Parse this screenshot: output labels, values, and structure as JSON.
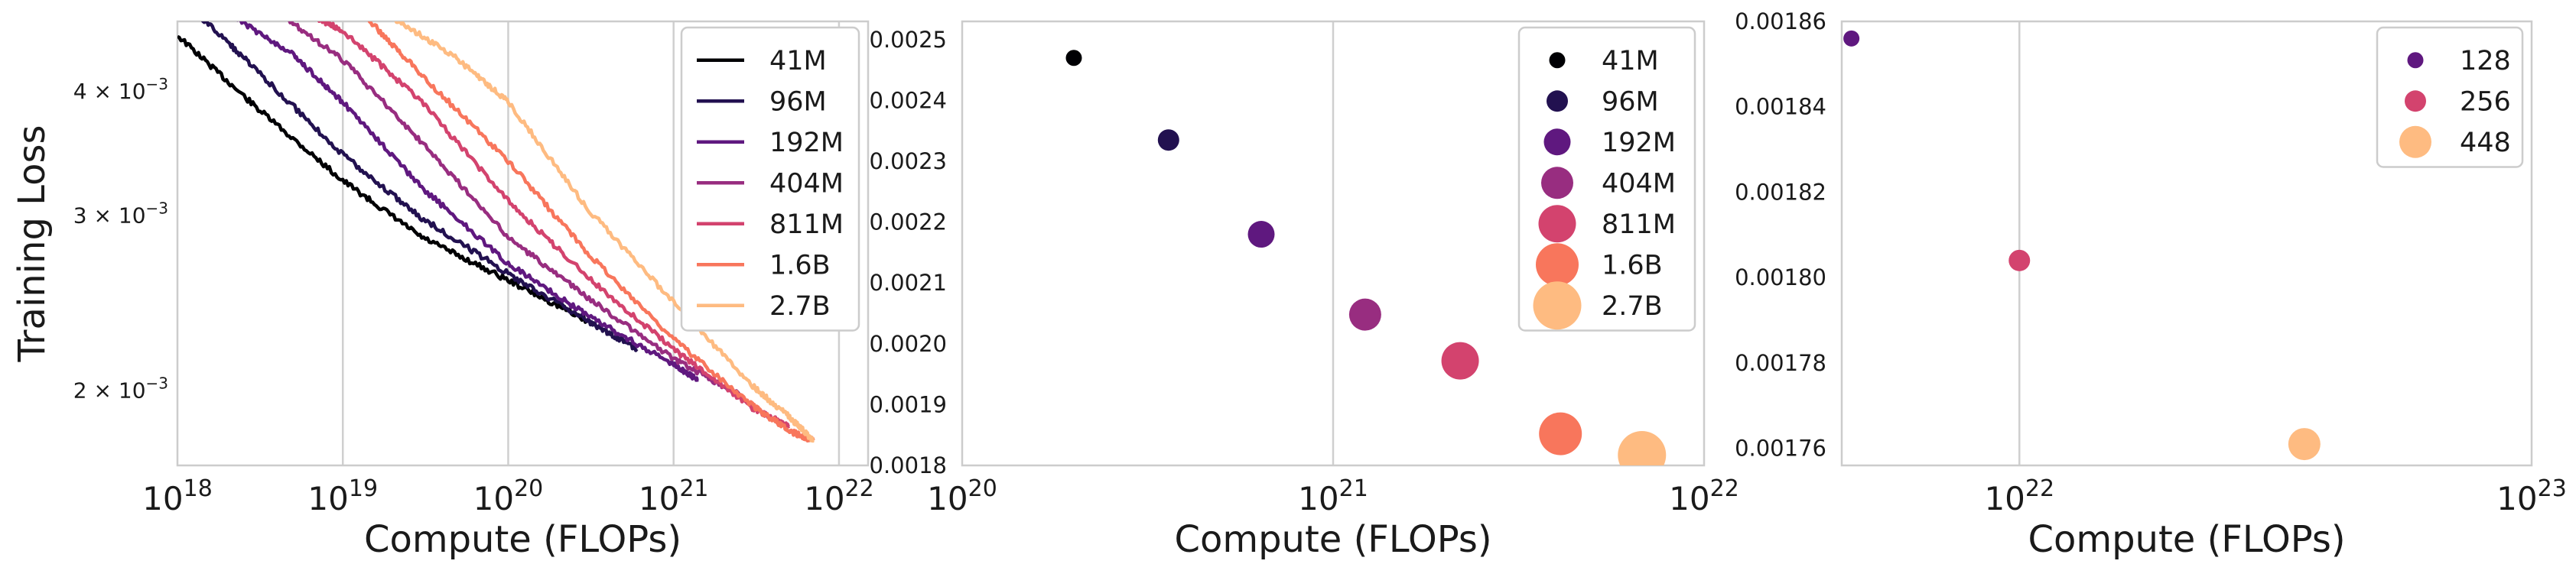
{
  "chart_data": [
    {
      "type": "line",
      "xlabel": "Compute (FLOPs)",
      "ylabel": "Training Loss",
      "xscale": "log",
      "yscale": "log",
      "xlim": [
        1e+18,
        1.5e+22
      ],
      "ylim": [
        0.00168,
        0.0047
      ],
      "grid": "vertical",
      "x_ticks": [
        {
          "value": 1e+18,
          "base": "10",
          "exp": "18"
        },
        {
          "value": 1e+19,
          "base": "10",
          "exp": "19"
        },
        {
          "value": 1e+20,
          "base": "10",
          "exp": "20"
        },
        {
          "value": 1e+21,
          "base": "10",
          "exp": "21"
        },
        {
          "value": 1e+22,
          "base": "10",
          "exp": "22"
        }
      ],
      "y_ticks": [
        {
          "value": 0.004,
          "mant": "4 × 10",
          "exp": "−3"
        },
        {
          "value": 0.003,
          "mant": "3 × 10",
          "exp": "−3"
        },
        {
          "value": 0.002,
          "mant": "2 × 10",
          "exp": "−3"
        }
      ],
      "legend": "top-right",
      "series": [
        {
          "name": "41M",
          "color": "#000004",
          "points": [
            [
              1e+18,
              0.00455
            ],
            [
              3e+18,
              0.00385
            ],
            [
              1e+19,
              0.00325
            ],
            [
              3e+19,
              0.00285
            ],
            [
              1e+20,
              0.00258
            ],
            [
              3e+20,
              0.00235
            ]
          ]
        },
        {
          "name": "96M",
          "color": "#221150",
          "points": [
            [
              1.3e+18,
              0.0048
            ],
            [
              3e+18,
              0.0042
            ],
            [
              1e+19,
              0.00345
            ],
            [
              3e+19,
              0.00298
            ],
            [
              1e+20,
              0.00262
            ],
            [
              3e+20,
              0.00235
            ],
            [
              6e+20,
              0.0022
            ]
          ]
        },
        {
          "name": "192M",
          "color": "#5f187f",
          "points": [
            [
              2e+18,
              0.0048
            ],
            [
              5e+18,
              0.00435
            ],
            [
              1e+19,
              0.0039
            ],
            [
              3e+19,
              0.0032
            ],
            [
              1e+20,
              0.00268
            ],
            [
              3e+20,
              0.00238
            ],
            [
              1e+21,
              0.00212
            ],
            [
              1.4e+21,
              0.00205
            ]
          ]
        },
        {
          "name": "404M",
          "color": "#982d80",
          "points": [
            [
              4e+18,
              0.0048
            ],
            [
              1e+19,
              0.0043
            ],
            [
              3e+19,
              0.00355
            ],
            [
              1e+20,
              0.00285
            ],
            [
              3e+20,
              0.00248
            ],
            [
              1e+21,
              0.00215
            ],
            [
              2.5e+21,
              0.00198
            ]
          ]
        },
        {
          "name": "811M",
          "color": "#d3436e",
          "points": [
            [
              6e+18,
              0.0048
            ],
            [
              1e+19,
              0.0046
            ],
            [
              3e+19,
              0.0039
            ],
            [
              1e+20,
              0.0031
            ],
            [
              3e+20,
              0.0026
            ],
            [
              1e+21,
              0.0022
            ],
            [
              3e+21,
              0.00192
            ],
            [
              5e+21,
              0.00184
            ]
          ]
        },
        {
          "name": "1.6B",
          "color": "#f8765c",
          "points": [
            [
              1.3e+19,
              0.0048
            ],
            [
              3e+19,
              0.00415
            ],
            [
              1e+20,
              0.0034
            ],
            [
              3e+20,
              0.00275
            ],
            [
              1e+21,
              0.00225
            ],
            [
              3e+21,
              0.00193
            ],
            [
              5e+21,
              0.00182
            ],
            [
              7e+21,
              0.00178
            ]
          ]
        },
        {
          "name": "2.7B",
          "color": "#febb81",
          "points": [
            [
              1.8e+19,
              0.0048
            ],
            [
              5e+19,
              0.0043
            ],
            [
              1e+20,
              0.0039
            ],
            [
              3e+20,
              0.00305
            ],
            [
              1e+21,
              0.00245
            ],
            [
              3e+21,
              0.00202
            ],
            [
              5e+21,
              0.00188
            ],
            [
              7e+21,
              0.00178
            ]
          ]
        }
      ]
    },
    {
      "type": "scatter",
      "xlabel": "Compute (FLOPs)",
      "ylabel": "",
      "xscale": "log",
      "xlim": [
        1e+20,
        1e+22
      ],
      "ylim": [
        0.0018,
        0.00253
      ],
      "grid": "vertical",
      "x_ticks": [
        {
          "value": 1e+20,
          "base": "10",
          "exp": "20"
        },
        {
          "value": 1e+21,
          "base": "10",
          "exp": "21"
        },
        {
          "value": 1e+22,
          "base": "10",
          "exp": "22"
        }
      ],
      "y_ticks": [
        {
          "value": 0.0018,
          "label": "0.0018"
        },
        {
          "value": 0.0019,
          "label": "0.0019"
        },
        {
          "value": 0.002,
          "label": "0.0020"
        },
        {
          "value": 0.0021,
          "label": "0.0021"
        },
        {
          "value": 0.0022,
          "label": "0.0022"
        },
        {
          "value": 0.0023,
          "label": "0.0023"
        },
        {
          "value": 0.0024,
          "label": "0.0024"
        },
        {
          "value": 0.0025,
          "label": "0.0025"
        }
      ],
      "legend": "top-right",
      "series": [
        {
          "name": "41M",
          "color": "#000004",
          "size": 1,
          "x": 2e+20,
          "y": 0.00247
        },
        {
          "name": "96M",
          "color": "#221150",
          "size": 2,
          "x": 3.6e+20,
          "y": 0.002335
        },
        {
          "name": "192M",
          "color": "#5f187f",
          "size": 3,
          "x": 6.4e+20,
          "y": 0.00218
        },
        {
          "name": "404M",
          "color": "#982d80",
          "size": 4,
          "x": 1.22e+21,
          "y": 0.002048
        },
        {
          "name": "811M",
          "color": "#d3436e",
          "size": 5,
          "x": 2.2e+21,
          "y": 0.001972
        },
        {
          "name": "1.6B",
          "color": "#f8765c",
          "size": 6,
          "x": 4.1e+21,
          "y": 0.001852
        },
        {
          "name": "2.7B",
          "color": "#febb81",
          "size": 7,
          "x": 6.8e+21,
          "y": 0.001817
        }
      ]
    },
    {
      "type": "scatter",
      "xlabel": "Compute (FLOPs)",
      "ylabel": "",
      "xscale": "log",
      "xlim": [
        4.5e+21,
        1e+23
      ],
      "ylim": [
        0.001756,
        0.00186
      ],
      "grid": "vertical",
      "x_ticks": [
        {
          "value": 1e+22,
          "base": "10",
          "exp": "22"
        },
        {
          "value": 1e+23,
          "base": "10",
          "exp": "23"
        }
      ],
      "y_ticks": [
        {
          "value": 0.00176,
          "label": "0.00176"
        },
        {
          "value": 0.00178,
          "label": "0.00178"
        },
        {
          "value": 0.0018,
          "label": "0.00180"
        },
        {
          "value": 0.00182,
          "label": "0.00182"
        },
        {
          "value": 0.00184,
          "label": "0.00184"
        },
        {
          "value": 0.00186,
          "label": "0.00186"
        }
      ],
      "legend": "top-right",
      "series": [
        {
          "name": "128",
          "color": "#5f187f",
          "size": 1,
          "x": 4.7e+21,
          "y": 0.001856
        },
        {
          "name": "256",
          "color": "#d3436e",
          "size": 2,
          "x": 1e+22,
          "y": 0.001804
        },
        {
          "name": "448",
          "color": "#febb81",
          "size": 4,
          "x": 3.6e+22,
          "y": 0.001761
        }
      ]
    }
  ]
}
